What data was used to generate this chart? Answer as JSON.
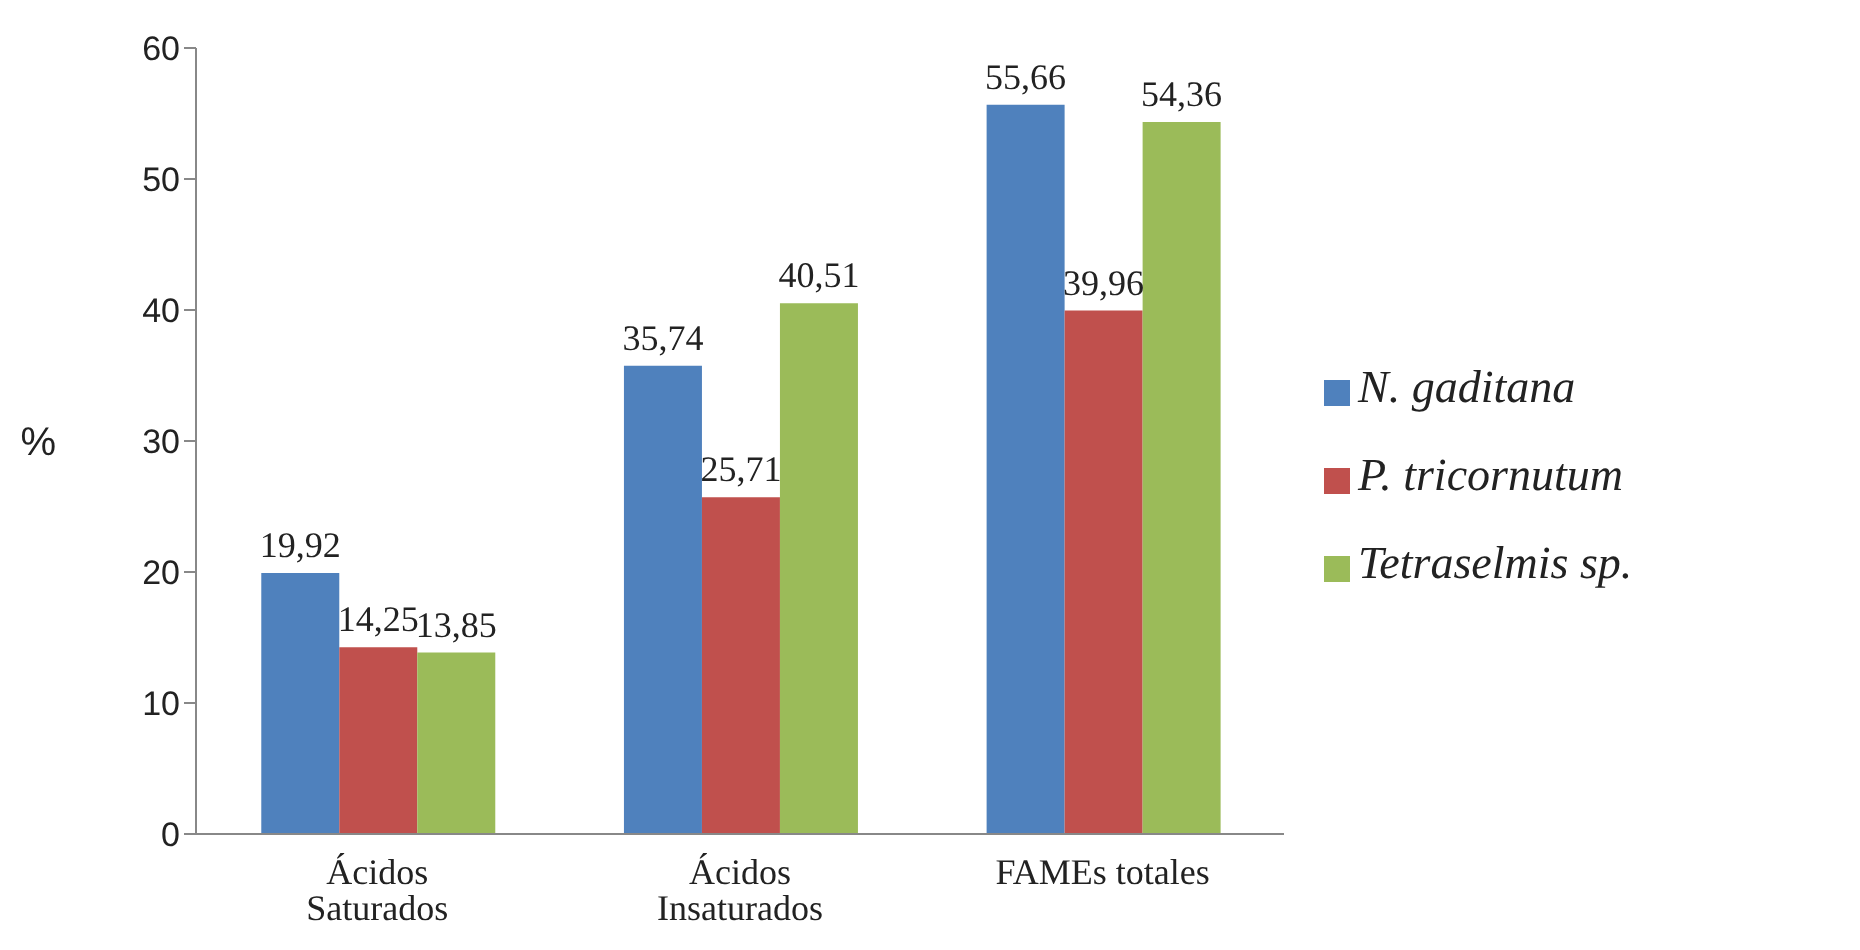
{
  "chart_data": {
    "type": "bar",
    "ylabel": "%",
    "categories": [
      "Ácidos Saturados",
      "Ácidos Insaturados",
      "FAMEs totales"
    ],
    "series": [
      {
        "name": "N. gaditana",
        "color": "#4f81bd",
        "values": [
          19.92,
          35.74,
          55.66
        ],
        "value_labels": [
          "19,92",
          "35,74",
          "55,66"
        ]
      },
      {
        "name": "P. tricornutum",
        "color": "#c0504d",
        "values": [
          14.25,
          25.71,
          39.96
        ],
        "value_labels": [
          "14,25",
          "25,71",
          "39,96"
        ]
      },
      {
        "name": "Tetraselmis sp.",
        "color": "#9bbb59",
        "values": [
          13.85,
          40.51,
          54.36
        ],
        "value_labels": [
          "13,85",
          "40,51",
          "54,36"
        ]
      }
    ],
    "ylim": [
      0,
      60
    ],
    "yticks": [
      0,
      10,
      20,
      30,
      40,
      50,
      60
    ],
    "grid": false,
    "legend": "right"
  }
}
